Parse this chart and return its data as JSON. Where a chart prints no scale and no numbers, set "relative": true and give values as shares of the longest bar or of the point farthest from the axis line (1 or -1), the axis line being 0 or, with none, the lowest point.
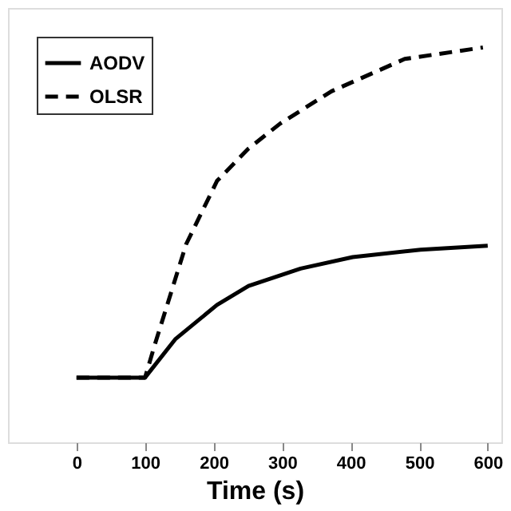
{
  "chart_data": {
    "type": "line",
    "xlabel": "Time (s)",
    "relative": true,
    "xlim": [
      -100,
      620
    ],
    "xticks": [
      0,
      100,
      200,
      300,
      400,
      500,
      600
    ],
    "grid": false,
    "legend": "top left",
    "marker": "none",
    "series": [
      {
        "name": "AODV",
        "color": "#000000",
        "line_style": "solid",
        "x": [
          0,
          100,
          144,
          205,
          251,
          327,
          403,
          502,
          600
        ],
        "values": [
          0.164,
          0.164,
          0.261,
          0.348,
          0.396,
          0.44,
          0.469,
          0.488,
          0.498
        ]
      },
      {
        "name": "OLSR",
        "color": "#000000",
        "line_style": "dashed",
        "x": [
          0,
          100,
          114,
          160,
          205,
          251,
          297,
          372,
          479,
          593
        ],
        "values": [
          0.164,
          0.164,
          0.246,
          0.502,
          0.662,
          0.744,
          0.807,
          0.889,
          0.971,
          1.0
        ]
      }
    ]
  }
}
